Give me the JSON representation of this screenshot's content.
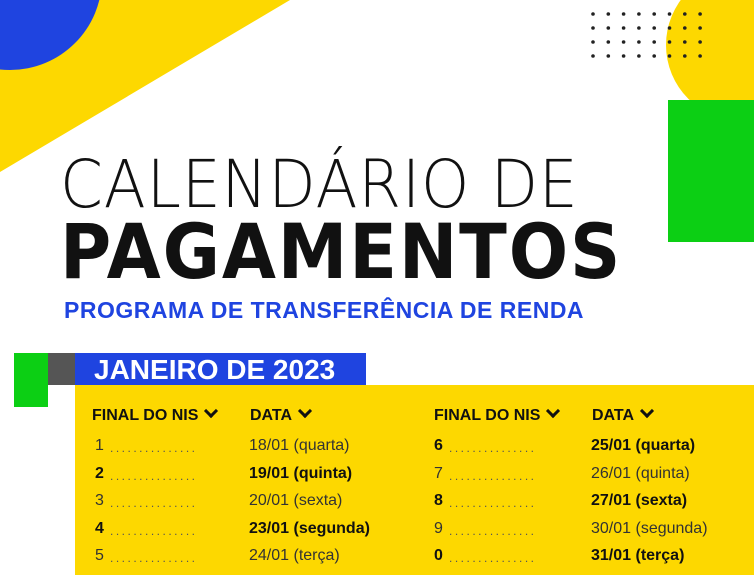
{
  "title_line1": "CALENDÁRIO DE",
  "title_line2": "PAGAMENTOS",
  "subtitle": "PROGRAMA DE TRANSFERÊNCIA DE RENDA",
  "month": "JANEIRO DE 2023",
  "colors": {
    "yellow": "#fdd800",
    "blue": "#1f44e0",
    "green": "#0ccf14",
    "gray": "#555555"
  },
  "headers": {
    "nis": "FINAL DO NIS",
    "data": "DATA",
    "icon": "chevron-down-icon"
  },
  "left_rows": [
    {
      "nis": "1",
      "date": "18/01 (quarta)",
      "bold": false
    },
    {
      "nis": "2",
      "date": "19/01 (quinta)",
      "bold": true
    },
    {
      "nis": "3",
      "date": "20/01 (sexta)",
      "bold": false
    },
    {
      "nis": "4",
      "date": "23/01 (segunda)",
      "bold": true
    },
    {
      "nis": "5",
      "date": "24/01 (terça)",
      "bold": false
    }
  ],
  "right_rows": [
    {
      "nis": "6",
      "date": "25/01 (quarta)",
      "bold": true
    },
    {
      "nis": "7",
      "date": "26/01 (quinta)",
      "bold": false
    },
    {
      "nis": "8",
      "date": "27/01 (sexta)",
      "bold": true
    },
    {
      "nis": "9",
      "date": "30/01 (segunda)",
      "bold": false
    },
    {
      "nis": "0",
      "date": "31/01 (terça)",
      "bold": true
    }
  ]
}
